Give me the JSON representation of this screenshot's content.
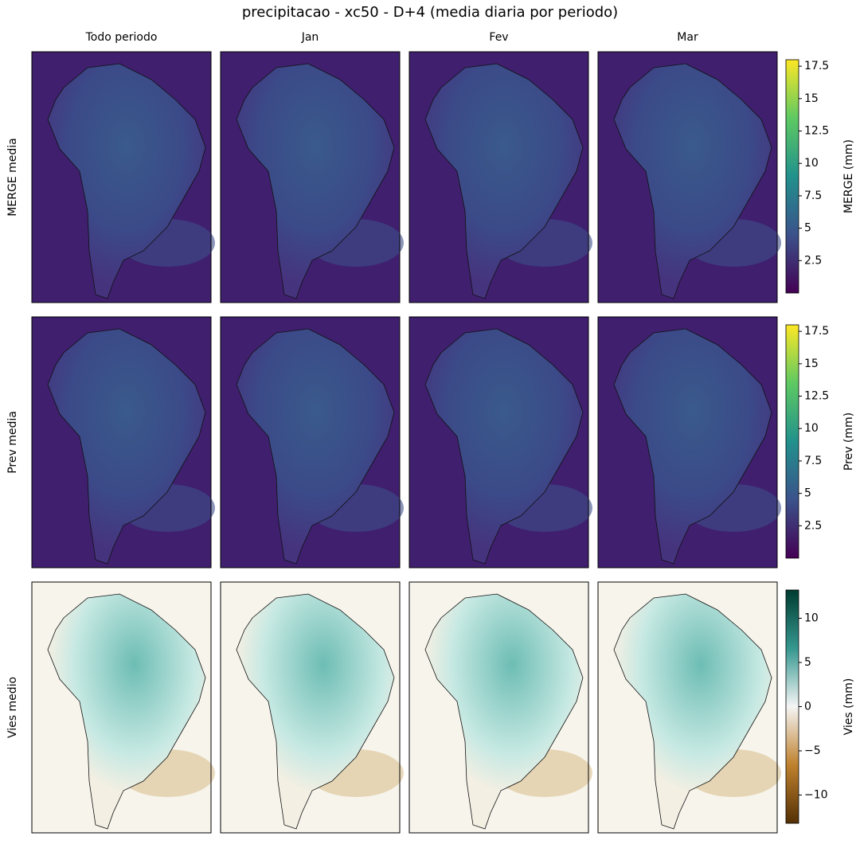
{
  "title": "precipitacao - xc50 - D+4 (media diaria por periodo)",
  "columns": [
    "Todo periodo",
    "Jan",
    "Fev",
    "Mar"
  ],
  "rows": [
    {
      "label": "MERGE media",
      "colorbar": {
        "label": "MERGE (mm)",
        "colormap": "viridis",
        "lim": [
          0,
          18
        ],
        "ticks": [
          2.5,
          5.0,
          7.5,
          10.0,
          12.5,
          15.0,
          17.5
        ]
      }
    },
    {
      "label": "Prev media",
      "colorbar": {
        "label": "Prev (mm)",
        "colormap": "viridis",
        "lim": [
          0,
          18
        ],
        "ticks": [
          2.5,
          5.0,
          7.5,
          10.0,
          12.5,
          15.0,
          17.5
        ]
      }
    },
    {
      "label": "Vies medio",
      "colorbar": {
        "label": "Vies (mm)",
        "colormap": "BrBG",
        "lim": [
          -13.2,
          13.2
        ],
        "ticks": [
          {
            "value": -10,
            "label": "−10"
          },
          {
            "value": -5,
            "label": "−5"
          },
          0,
          5,
          10
        ]
      }
    }
  ]
}
